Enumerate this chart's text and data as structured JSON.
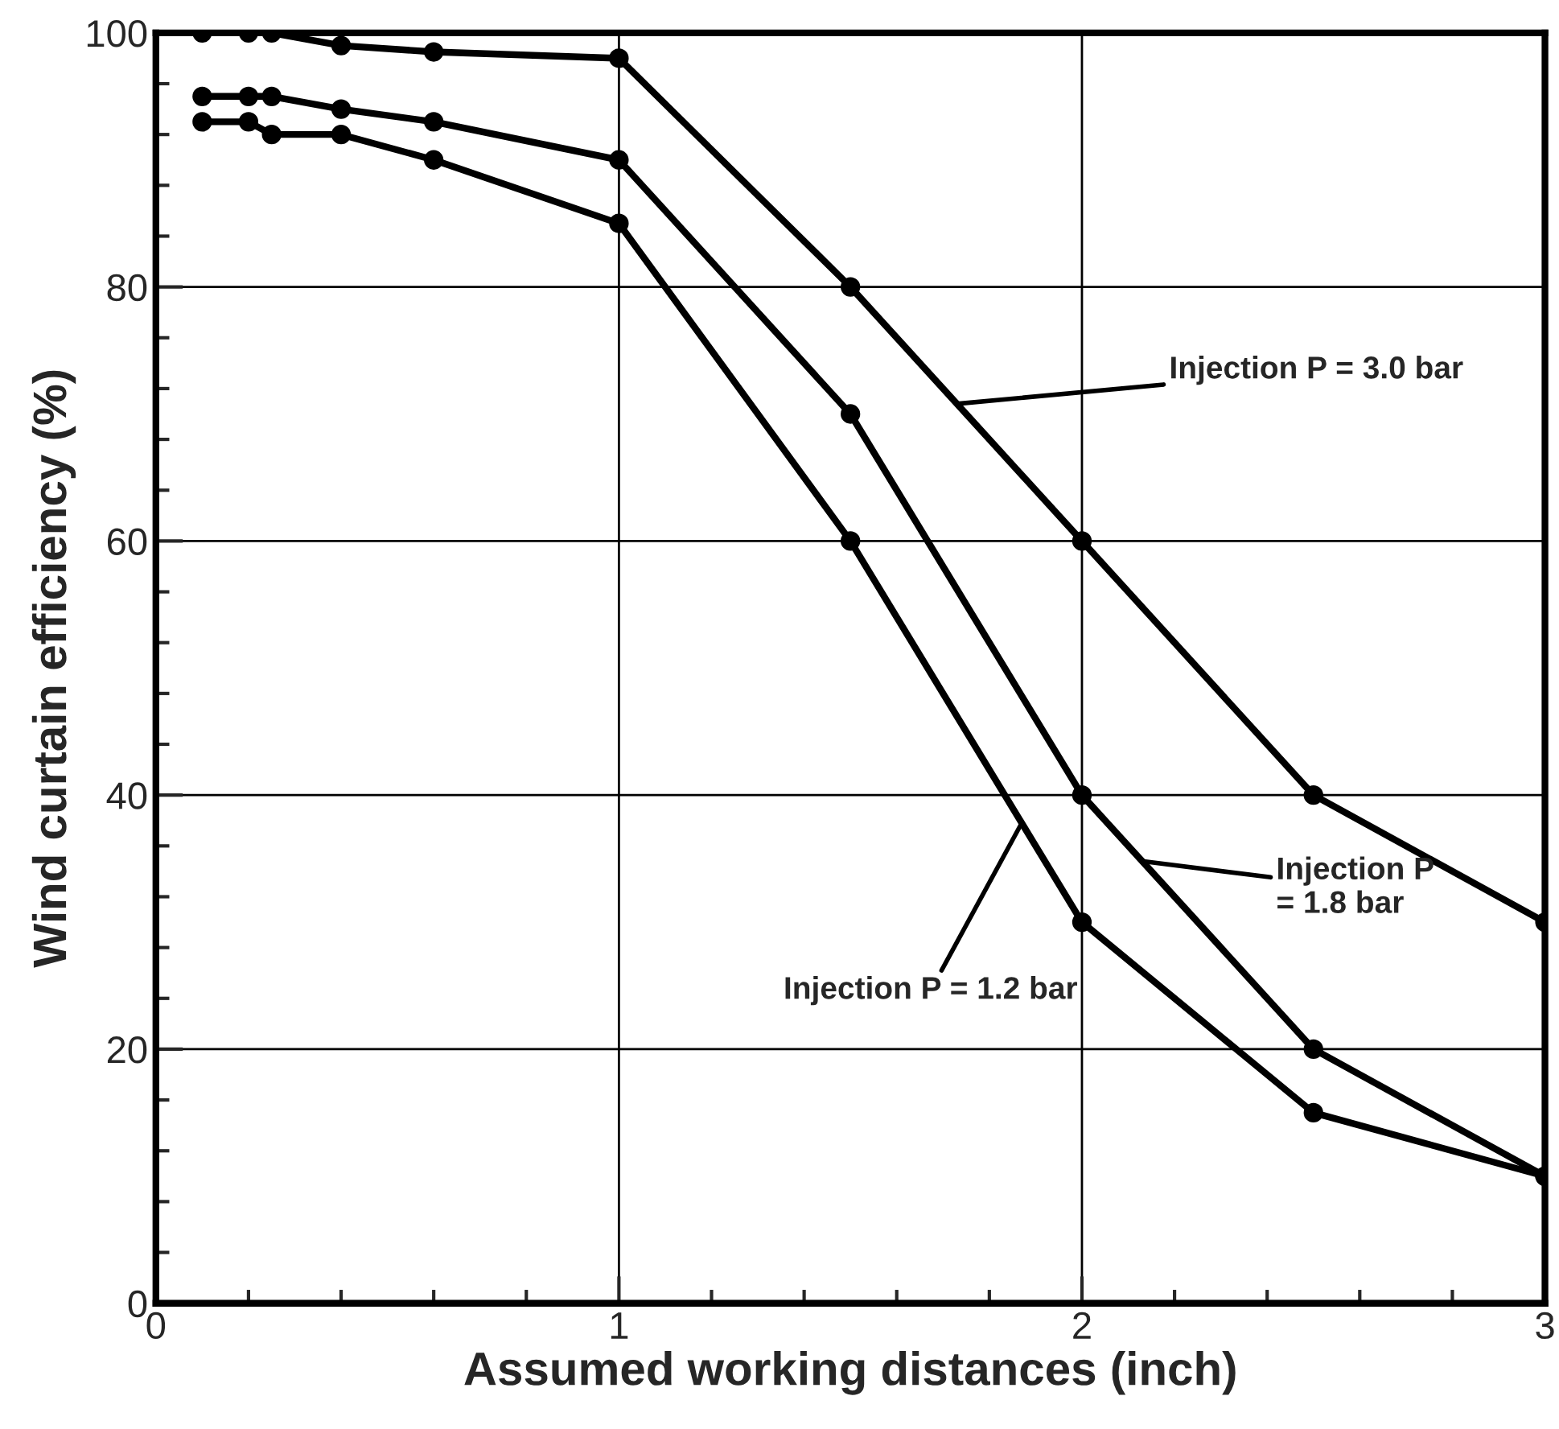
{
  "chart_data": {
    "type": "line",
    "xlabel": "Assumed working distances (inch)",
    "ylabel": "Wind curtain efficiency (%)",
    "x": [
      0.1,
      0.2,
      0.25,
      0.4,
      0.6,
      1,
      1.5,
      2,
      2.5,
      3
    ],
    "series": [
      {
        "color": "#000000",
        "values": [
          100,
          100,
          100,
          99,
          98.5,
          98,
          80,
          60,
          40,
          30
        ]
      },
      {
        "color": "#000000",
        "values": [
          95,
          95,
          95,
          94,
          93,
          90,
          70,
          40,
          20,
          10
        ]
      },
      {
        "color": "#000000",
        "values": [
          93,
          93,
          92,
          92,
          90,
          85,
          60,
          30,
          15,
          10
        ]
      }
    ],
    "annotations": [
      {
        "text": "Injection P = 3.0 bar",
        "x": 1.73,
        "y": 70.8
      },
      {
        "text": "Injection P\n= 1.8 bar",
        "x": 2.13,
        "y": 34.8
      },
      {
        "text": "Injection P = 1.2 bar",
        "x": 1.87,
        "y": 37.8
      }
    ],
    "xlim": [
      0,
      3
    ],
    "ylim": [
      0,
      100
    ],
    "xticks": [
      0,
      1,
      2,
      3
    ],
    "yticks": [
      0,
      20,
      40,
      60,
      80,
      100
    ],
    "grid": true,
    "legend": false,
    "marker": "circle",
    "line_style": "solid"
  }
}
